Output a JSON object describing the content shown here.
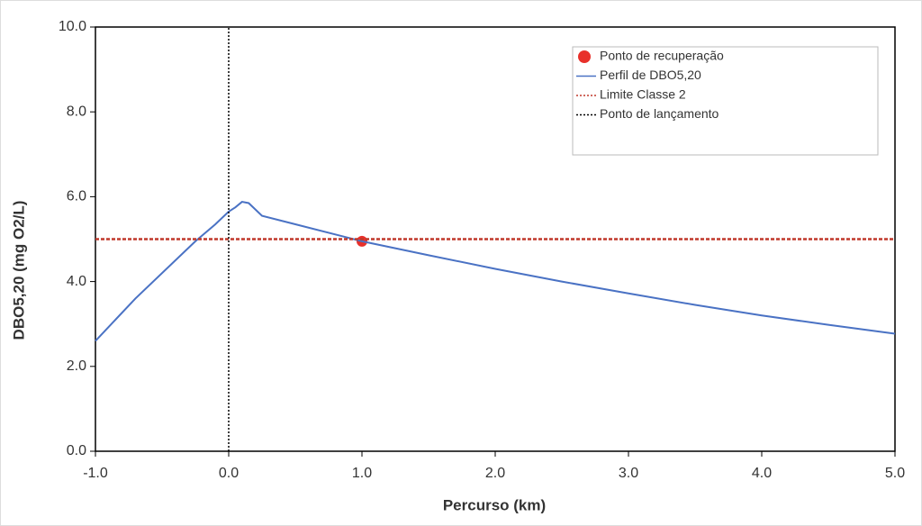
{
  "chart_data": {
    "type": "line",
    "xlabel": "Percurso (km)",
    "ylabel": "DBO5,20 (mg O2/L)",
    "xlim": [
      -1,
      5
    ],
    "ylim": [
      0,
      10
    ],
    "xticks": [
      {
        "value": -1,
        "label": "-1.0"
      },
      {
        "value": 0,
        "label": "0.0"
      },
      {
        "value": 1,
        "label": "1.0"
      },
      {
        "value": 2,
        "label": "2.0"
      },
      {
        "value": 3,
        "label": "3.0"
      },
      {
        "value": 4,
        "label": "4.0"
      },
      {
        "value": 5,
        "label": "5.0"
      }
    ],
    "yticks": [
      {
        "value": 0,
        "label": "0.0"
      },
      {
        "value": 2,
        "label": "2.0"
      },
      {
        "value": 4,
        "label": "4.0"
      },
      {
        "value": 6,
        "label": "6.0"
      },
      {
        "value": 8,
        "label": "8.0"
      },
      {
        "value": 10,
        "label": "10.0"
      }
    ],
    "legend": "top-right",
    "series": [
      {
        "name": "Ponto de recuperação",
        "color": "#e8302a",
        "line_style": "none",
        "marker": "circle",
        "x": [
          1.0
        ],
        "values": [
          4.95
        ]
      },
      {
        "name": "Perfil de DBO5,20",
        "color": "#4a72c4",
        "line_style": "solid",
        "marker": "none",
        "x": [
          -1.0,
          -0.7,
          -0.25,
          -0.1,
          0.0,
          0.05,
          0.1,
          0.15,
          0.25,
          0.5,
          1.0,
          1.5,
          2.0,
          2.5,
          3.0,
          3.5,
          4.0,
          4.5,
          5.0
        ],
        "values": [
          2.6,
          3.6,
          4.95,
          5.35,
          5.65,
          5.75,
          5.88,
          5.85,
          5.55,
          5.35,
          4.95,
          4.62,
          4.3,
          4.0,
          3.72,
          3.45,
          3.2,
          2.98,
          2.77
        ]
      },
      {
        "name": "Limite Classe 2",
        "color": "#c0392b",
        "line_style": "dashed",
        "marker": "none",
        "x": [
          -1,
          5
        ],
        "values": [
          5,
          5
        ]
      },
      {
        "name": "Ponto de lançamento",
        "color": "#000000",
        "line_style": "dotted",
        "marker": "none",
        "x": [
          0,
          0
        ],
        "values": [
          0,
          10
        ]
      }
    ]
  }
}
